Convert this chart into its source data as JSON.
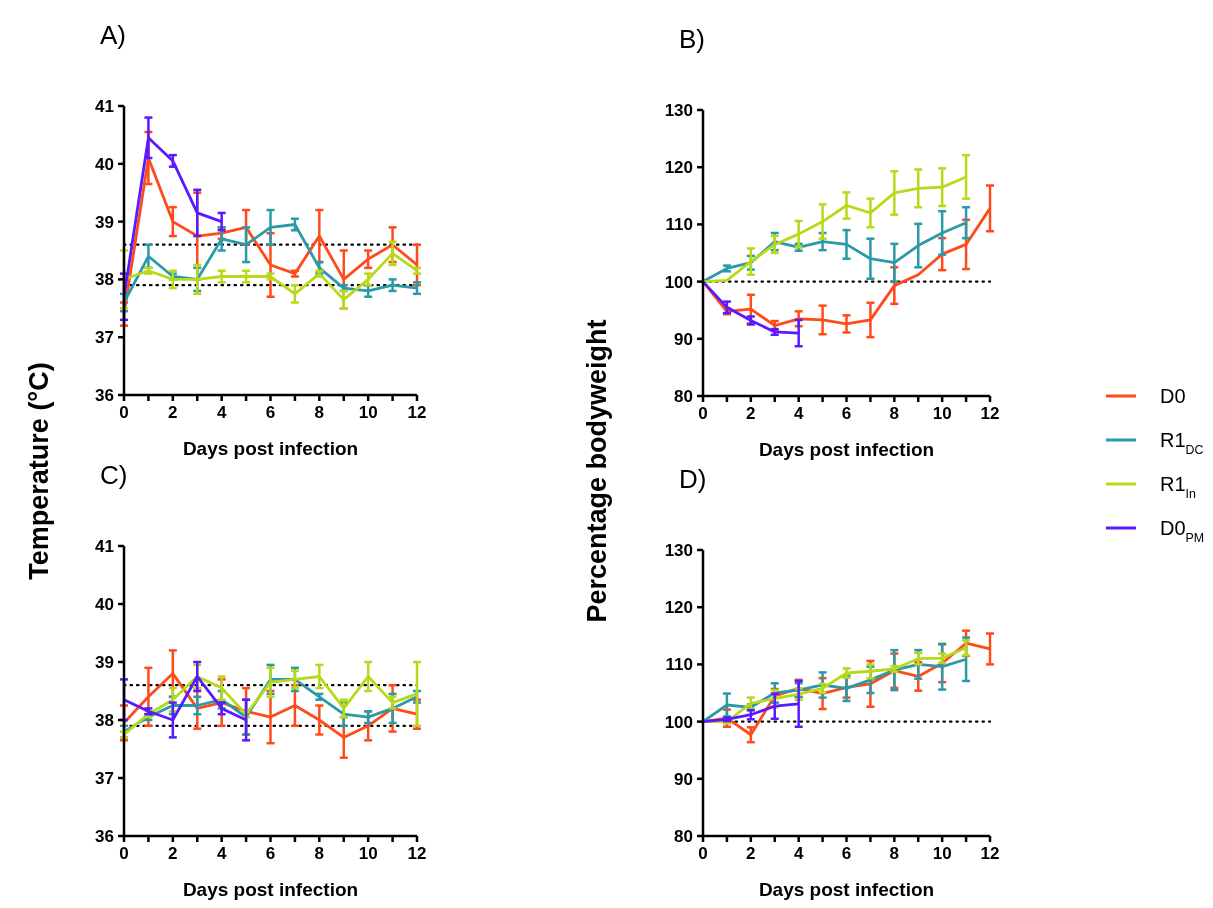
{
  "chart_data": [
    {
      "type": "line",
      "annotations": [
        "A)"
      ],
      "ylabel": "Temperature (°C)",
      "xlabel": "Days post infection",
      "x": [
        0,
        1,
        2,
        3,
        4,
        5,
        6,
        7,
        8,
        9,
        10,
        11,
        12
      ],
      "xlim": [
        0,
        12
      ],
      "xticks": [
        0,
        {
          "value": 1,
          "label": null
        },
        2,
        {
          "value": 3,
          "label": null
        },
        4,
        {
          "value": 5,
          "label": null
        },
        6,
        {
          "value": 7,
          "label": null
        },
        8,
        {
          "value": 9,
          "label": null
        },
        10,
        {
          "value": 11,
          "label": null
        },
        12
      ],
      "ylim": [
        36,
        41
      ],
      "yticks": [
        36,
        37,
        38,
        39,
        40,
        41
      ],
      "grid": false,
      "legend": false,
      "marker": "none",
      "line_style": "solid",
      "ref_lines": [
        {
          "axis": "y",
          "value": 38.6,
          "line_style": "dotted",
          "color": "#000000"
        },
        {
          "axis": "y",
          "value": 37.9,
          "line_style": "dotted",
          "color": "#000000"
        }
      ],
      "series": [
        {
          "color": "#ff4a1a",
          "values": [
            37.4,
            40.1,
            39.0,
            38.75,
            38.8,
            38.9,
            38.25,
            38.1,
            38.75,
            38.0,
            38.35,
            38.6,
            38.25
          ],
          "errors": [
            0.2,
            0.45,
            0.25,
            0.75,
            0.1,
            0.3,
            0.55,
            0.05,
            0.45,
            0.5,
            0.15,
            0.3,
            0.35
          ]
        },
        {
          "color": "#2a9aa8",
          "values": [
            37.6,
            38.4,
            38.05,
            38.0,
            38.7,
            38.6,
            38.9,
            38.95,
            38.2,
            37.85,
            37.8,
            37.9,
            37.85
          ],
          "errors": [
            0.15,
            0.2,
            0.05,
            0.2,
            0.2,
            0.3,
            0.3,
            0.1,
            0.1,
            0.05,
            0.1,
            0.1,
            0.1
          ]
        },
        {
          "color": "#b8d91a",
          "values": [
            38.0,
            38.15,
            38.0,
            38.0,
            38.05,
            38.05,
            38.05,
            37.75,
            38.1,
            37.65,
            38.0,
            38.45,
            38.15
          ],
          "errors": [
            0.5,
            0.05,
            0.15,
            0.25,
            0.1,
            0.1,
            0.05,
            0.15,
            0.05,
            0.15,
            0.1,
            0.2,
            0.05
          ]
        },
        {
          "color": "#5a1aff",
          "values": [
            37.7,
            40.45,
            40.05,
            39.15,
            39.0,
            null,
            null,
            null,
            null,
            null,
            null,
            null,
            null
          ],
          "errors": [
            0.4,
            0.35,
            0.1,
            0.4,
            0.15,
            null,
            null,
            null,
            null,
            null,
            null,
            null,
            null
          ]
        }
      ]
    },
    {
      "type": "line",
      "annotations": [
        "B)"
      ],
      "ylabel": "Percentage bodyweight",
      "xlabel": "Days post infection",
      "x": [
        0,
        1,
        2,
        3,
        4,
        5,
        6,
        7,
        8,
        9,
        10,
        11,
        12
      ],
      "xlim": [
        0,
        12
      ],
      "xticks": [
        0,
        {
          "value": 1,
          "label": null
        },
        2,
        {
          "value": 3,
          "label": null
        },
        4,
        {
          "value": 5,
          "label": null
        },
        6,
        {
          "value": 7,
          "label": null
        },
        8,
        {
          "value": 9,
          "label": null
        },
        10,
        {
          "value": 11,
          "label": null
        },
        12
      ],
      "ylim": [
        80,
        130
      ],
      "yticks": [
        80,
        90,
        100,
        110,
        120,
        130
      ],
      "grid": false,
      "legend": "right",
      "marker": "none",
      "line_style": "solid",
      "ref_lines": [
        {
          "axis": "y",
          "value": 100,
          "line_style": "dotted",
          "color": "#000000"
        }
      ],
      "series": [
        {
          "name": "D0",
          "color": "#ff4a1a",
          "values": [
            100,
            94.8,
            95.2,
            92.3,
            93.5,
            93.3,
            92.6,
            93.3,
            99.3,
            101.2,
            104.8,
            106.5,
            112.8
          ],
          "errors": [
            null,
            0.5,
            2.5,
            0.8,
            1.3,
            2.5,
            1.5,
            3.0,
            3.2,
            null,
            2.8,
            4.3,
            4.0
          ]
        },
        {
          "name": "R1$_{DC}$",
          "color": "#2a9aa8",
          "values": [
            100,
            102.3,
            103.3,
            107,
            106,
            107,
            106.5,
            104,
            103.3,
            106.3,
            108.5,
            110.3,
            null
          ],
          "errors": [
            null,
            0.5,
            1.2,
            1.5,
            0.6,
            1.5,
            2.5,
            3.5,
            3.3,
            3.8,
            3.8,
            2.7,
            null
          ]
        },
        {
          "name": "R1$_{In}$",
          "color": "#b8d91a",
          "values": [
            100,
            100.2,
            103.5,
            106.5,
            108.3,
            110.5,
            113.3,
            112,
            115.5,
            116.3,
            116.5,
            118.3,
            null
          ],
          "errors": [
            null,
            null,
            2.3,
            1.5,
            2.3,
            3,
            2.3,
            2.5,
            3.8,
            3.3,
            3.3,
            3.8,
            null
          ]
        },
        {
          "name": "D0$_{PM}$",
          "color": "#5a1aff",
          "values": [
            100,
            95.5,
            93.2,
            91.2,
            91,
            null,
            null,
            null,
            null,
            null,
            null,
            null,
            null
          ],
          "errors": [
            null,
            1,
            0.7,
            0.5,
            2.3,
            null,
            null,
            null,
            null,
            null,
            null,
            null,
            null
          ]
        }
      ]
    },
    {
      "type": "line",
      "annotations": [
        "C)"
      ],
      "xlabel": "Days post infection",
      "x": [
        0,
        1,
        2,
        3,
        4,
        5,
        6,
        7,
        8,
        9,
        10,
        11,
        12
      ],
      "xlim": [
        0,
        12
      ],
      "xticks": [
        0,
        {
          "value": 1,
          "label": null
        },
        2,
        {
          "value": 3,
          "label": null
        },
        4,
        {
          "value": 5,
          "label": null
        },
        6,
        {
          "value": 7,
          "label": null
        },
        8,
        {
          "value": 9,
          "label": null
        },
        10,
        {
          "value": 11,
          "label": null
        },
        12
      ],
      "ylim": [
        36,
        41
      ],
      "yticks": [
        36,
        37,
        38,
        39,
        40,
        41
      ],
      "grid": false,
      "legend": false,
      "marker": "none",
      "line_style": "solid",
      "ref_lines": [
        {
          "axis": "y",
          "value": 38.6,
          "line_style": "dotted",
          "color": "#000000"
        },
        {
          "axis": "y",
          "value": 37.9,
          "line_style": "dotted",
          "color": "#000000"
        }
      ],
      "series": [
        {
          "color": "#ff4a1a",
          "values": [
            37.95,
            38.4,
            38.8,
            38.2,
            38.3,
            38.15,
            38.05,
            38.25,
            38.0,
            37.7,
            37.9,
            38.2,
            38.1
          ],
          "errors": [
            0.3,
            0.5,
            0.4,
            0.35,
            0.4,
            0.4,
            0.45,
            0.35,
            0.25,
            0.35,
            0.25,
            0.4,
            0.25
          ]
        },
        {
          "color": "#2a9aa8",
          "values": [
            37.8,
            38.05,
            38.25,
            38.25,
            38.35,
            38.05,
            38.7,
            38.7,
            38.4,
            38.1,
            38.05,
            38.2,
            38.4
          ],
          "errors": [
            0.1,
            0.05,
            0.15,
            0.15,
            0.15,
            0.3,
            0.25,
            0.2,
            0.05,
            0.2,
            0.1,
            0.25,
            0.1
          ]
        },
        {
          "color": "#b8d91a",
          "values": [
            37.75,
            38.1,
            38.35,
            38.75,
            38.55,
            38.1,
            38.65,
            38.7,
            38.75,
            38.2,
            38.75,
            38.3,
            38.45
          ],
          "errors": [
            0.05,
            0.05,
            0.2,
            0.2,
            0.2,
            0.05,
            0.25,
            0.15,
            0.2,
            0.15,
            0.25,
            0.1,
            0.55
          ]
        },
        {
          "color": "#5a1aff",
          "values": [
            38.35,
            38.15,
            38.0,
            38.75,
            38.2,
            38.0,
            null,
            null,
            null,
            null,
            null,
            null,
            null
          ],
          "errors": [
            0.35,
            0.05,
            0.3,
            0.25,
            0.1,
            0.35,
            null,
            null,
            null,
            null,
            null,
            null,
            null
          ]
        }
      ]
    },
    {
      "type": "line",
      "annotations": [
        "D)"
      ],
      "xlabel": "Days post infection",
      "x": [
        0,
        1,
        2,
        3,
        4,
        5,
        6,
        7,
        8,
        9,
        10,
        11,
        12
      ],
      "xlim": [
        0,
        12
      ],
      "xticks": [
        0,
        {
          "value": 1,
          "label": null
        },
        2,
        {
          "value": 3,
          "label": null
        },
        4,
        {
          "value": 5,
          "label": null
        },
        6,
        {
          "value": 7,
          "label": null
        },
        8,
        {
          "value": 9,
          "label": null
        },
        10,
        {
          "value": 11,
          "label": null
        },
        12
      ],
      "ylim": [
        80,
        130
      ],
      "yticks": [
        80,
        90,
        100,
        110,
        120,
        130
      ],
      "grid": false,
      "legend": false,
      "marker": "none",
      "line_style": "solid",
      "ref_lines": [
        {
          "axis": "y",
          "value": 100,
          "line_style": "dotted",
          "color": "#000000"
        }
      ],
      "series": [
        {
          "color": "#ff4a1a",
          "values": [
            100,
            100.6,
            97.7,
            104.5,
            105.8,
            104.9,
            106,
            106.6,
            108.9,
            107.9,
            110.2,
            113.7,
            112.7
          ],
          "errors": [
            null,
            1.5,
            1.3,
            1.2,
            1.5,
            2.7,
            1.8,
            4.0,
            3.0,
            2.5,
            3.3,
            2.2,
            2.7
          ]
        },
        {
          "color": "#2a9aa8",
          "values": [
            100,
            102.9,
            102.5,
            105,
            105.5,
            106.4,
            105.8,
            107.3,
            109,
            110,
            109.6,
            110.9,
            null
          ],
          "errors": [
            null,
            2,
            0.5,
            1.7,
            1.2,
            2.2,
            2.2,
            2.3,
            3.5,
            2.5,
            4.0,
            3.8,
            null
          ]
        },
        {
          "color": "#b8d91a",
          "values": [
            100,
            100,
            103.2,
            104,
            104.8,
            105.8,
            108.5,
            108.8,
            109.2,
            111.0,
            111.1,
            112.9,
            null
          ],
          "errors": [
            null,
            0.3,
            1,
            1.5,
            1,
            0.8,
            0.8,
            1.2,
            0.5,
            1,
            0.8,
            1.3,
            null
          ]
        },
        {
          "color": "#5a1aff",
          "values": [
            100,
            100.4,
            101.2,
            102.7,
            103.1,
            null,
            null,
            null,
            null,
            null,
            null,
            null,
            null
          ],
          "errors": [
            null,
            0.3,
            0.8,
            2.2,
            4.0,
            null,
            null,
            null,
            null,
            null,
            null,
            null,
            null
          ]
        }
      ]
    }
  ]
}
